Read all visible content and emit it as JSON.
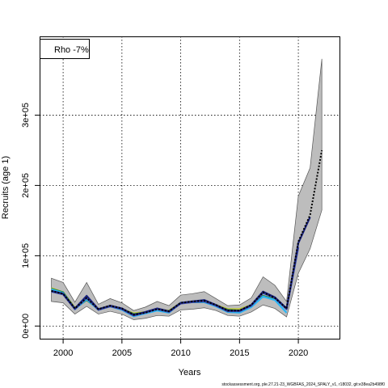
{
  "chart_data": {
    "type": "line",
    "xlabel": "Years",
    "ylabel": "Recruits (age 1)",
    "xlim": [
      1998,
      2023.5
    ],
    "ylim": [
      -18000,
      412000
    ],
    "x_ticks": [
      2000,
      2005,
      2010,
      2015,
      2020
    ],
    "y_ticks": [
      {
        "value": 0,
        "label": "0e+00"
      },
      {
        "value": 100000,
        "label": "1e+05"
      },
      {
        "value": 200000,
        "label": "2e+05"
      },
      {
        "value": 300000,
        "label": "3e+05"
      }
    ],
    "grid": true,
    "legend": {
      "position": "top-left",
      "text": "Rho -7%"
    },
    "confidence_band": {
      "x": [
        1999,
        2000,
        2001,
        2002,
        2003,
        2004,
        2005,
        2006,
        2007,
        2008,
        2009,
        2010,
        2011,
        2012,
        2013,
        2014,
        2015,
        2016,
        2017,
        2018,
        2019,
        2020,
        2021,
        2022
      ],
      "lower": [
        35000,
        33000,
        17000,
        28000,
        17000,
        21000,
        17000,
        9000,
        11000,
        15000,
        14000,
        23000,
        24000,
        26000,
        22000,
        15000,
        14000,
        20000,
        30000,
        25000,
        13000,
        75000,
        110000,
        165000
      ],
      "upper": [
        68000,
        62000,
        34000,
        62000,
        31000,
        39000,
        33000,
        22000,
        27000,
        35000,
        29000,
        44000,
        46000,
        49000,
        39000,
        29000,
        30000,
        40000,
        70000,
        58000,
        35000,
        185000,
        225000,
        380000
      ]
    },
    "series": [
      {
        "color": "#000000",
        "dashed": true,
        "x": [
          1999,
          2000,
          2001,
          2002,
          2003,
          2004,
          2005,
          2006,
          2007,
          2008,
          2009,
          2010,
          2011,
          2012,
          2013,
          2014,
          2015,
          2016,
          2017,
          2018,
          2019,
          2020,
          2021,
          2022
        ],
        "values": [
          50000,
          46000,
          25000,
          40000,
          24000,
          29000,
          25000,
          16000,
          19000,
          24000,
          21000,
          33000,
          35000,
          36000,
          30000,
          22000,
          22000,
          30000,
          48000,
          40000,
          25000,
          120000,
          158000,
          250000
        ]
      },
      {
        "color": "#1a237e",
        "x": [
          1999,
          2000,
          2001,
          2002,
          2003,
          2004,
          2005,
          2006,
          2007,
          2008,
          2009,
          2010,
          2011,
          2012,
          2013,
          2014,
          2015,
          2016,
          2017,
          2018,
          2019,
          2020,
          2021
        ],
        "values": [
          50000,
          46000,
          25000,
          43000,
          24000,
          29000,
          25000,
          16000,
          20000,
          25000,
          21000,
          33000,
          35000,
          37000,
          30000,
          22000,
          22000,
          30000,
          49000,
          41000,
          25000,
          118000,
          155000
        ]
      },
      {
        "color": "#3949ab",
        "x": [
          1999,
          2000,
          2001,
          2002,
          2003,
          2004,
          2005,
          2006,
          2007,
          2008,
          2009,
          2010,
          2011,
          2012,
          2013,
          2014,
          2015,
          2016,
          2017,
          2018,
          2019,
          2020
        ],
        "values": [
          49000,
          45000,
          24000,
          40000,
          23000,
          28000,
          24000,
          15000,
          19000,
          24000,
          20000,
          32000,
          34000,
          35000,
          29000,
          21000,
          21000,
          29000,
          47000,
          40000,
          24000,
          112000
        ]
      },
      {
        "color": "#29b6f6",
        "x": [
          1999,
          2000,
          2001,
          2002,
          2003,
          2004,
          2005,
          2006,
          2007,
          2008,
          2009,
          2010,
          2011,
          2012,
          2013,
          2014,
          2015,
          2016,
          2017,
          2018,
          2019
        ],
        "values": [
          52000,
          47000,
          24000,
          38000,
          23000,
          28000,
          23000,
          14000,
          18000,
          22000,
          19000,
          33000,
          34000,
          34000,
          28000,
          20000,
          19000,
          27000,
          42000,
          37000,
          19000
        ]
      },
      {
        "color": "#2e7d32",
        "x": [
          1999,
          2000,
          2001,
          2002,
          2003,
          2004,
          2005,
          2006,
          2007,
          2008,
          2009,
          2010,
          2011,
          2012,
          2013,
          2014,
          2015,
          2016,
          2017,
          2018
        ],
        "values": [
          53000,
          48000,
          25000,
          37000,
          24000,
          28000,
          24000,
          17000,
          19000,
          23000,
          21000,
          33000,
          34000,
          34000,
          29000,
          23000,
          22000,
          29000,
          43000,
          38000
        ]
      },
      {
        "color": "#c0ca33",
        "x": [
          1999,
          2000,
          2001,
          2002,
          2003,
          2004,
          2005,
          2006,
          2007,
          2008,
          2009,
          2010,
          2011,
          2012,
          2013,
          2014,
          2015,
          2016,
          2017
        ],
        "values": [
          54000,
          48000,
          26000,
          37000,
          24000,
          29000,
          24000,
          18000,
          20000,
          23000,
          22000,
          33000,
          34000,
          34000,
          30000,
          24000,
          24000,
          30000,
          42000
        ]
      }
    ]
  },
  "footer": "stockassessment.org, ple.27.21-23_WGBFAS_2024_SPALY_v1, r18032, git:e38ea2b498f0"
}
